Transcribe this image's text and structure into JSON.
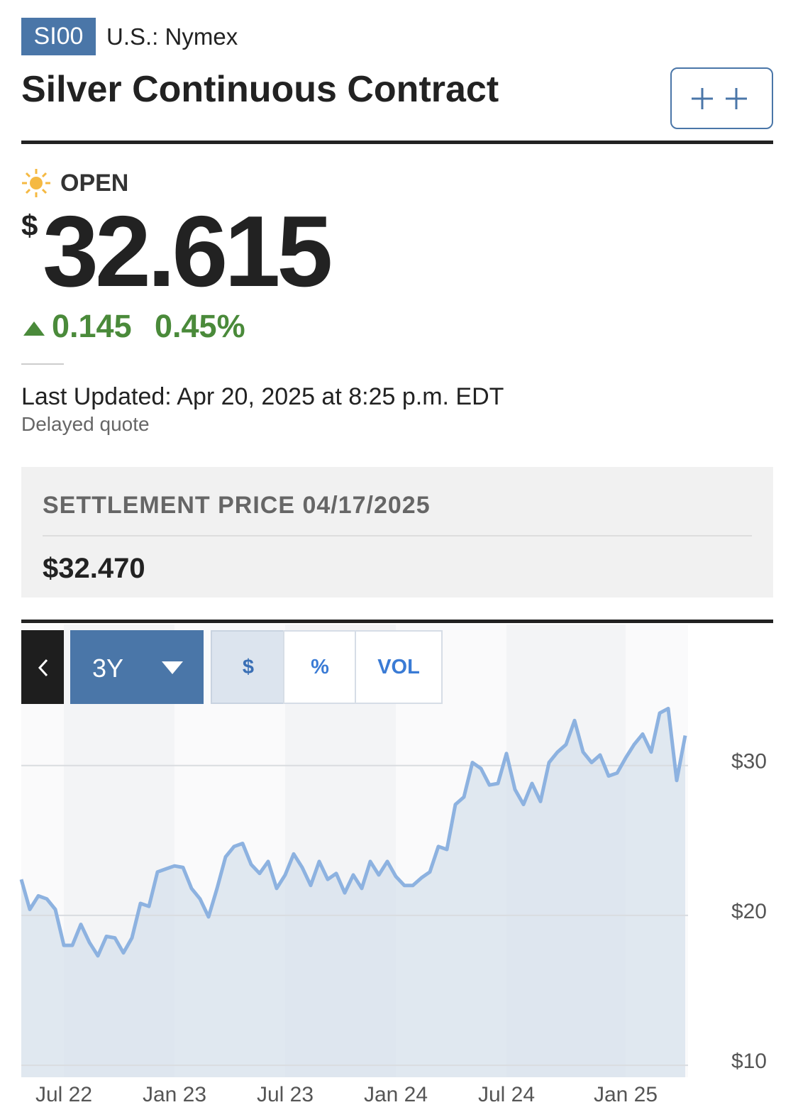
{
  "header": {
    "symbol": "SI00",
    "exchange": "U.S.: Nymex",
    "title": "Silver Continuous Contract"
  },
  "quote": {
    "status": "OPEN",
    "currency": "$",
    "price": "32.615",
    "change": "0.145",
    "change_percent": "0.45%",
    "last_updated": "Last Updated: Apr 20, 2025 at 8:25 p.m. EDT",
    "note": "Delayed quote"
  },
  "settlement": {
    "label": "SETTLEMENT PRICE 04/17/2025",
    "value": "$32.470"
  },
  "controls": {
    "range": "3Y",
    "modes": [
      "$",
      "%",
      "VOL"
    ]
  },
  "chart_data": {
    "type": "line",
    "color": "#8db2e0",
    "grid": true,
    "categories": [
      null,
      null,
      null,
      null,
      null,
      "Jul 22",
      null,
      null,
      null,
      null,
      null,
      null,
      null,
      null,
      null,
      null,
      null,
      null,
      "Jan 23",
      null,
      null,
      null,
      null,
      null,
      null,
      null,
      null,
      null,
      null,
      null,
      null,
      "Jul 23",
      null,
      null,
      null,
      null,
      null,
      null,
      null,
      null,
      null,
      null,
      null,
      null,
      "Jan 24",
      null,
      null,
      null,
      null,
      null,
      null,
      null,
      null,
      null,
      null,
      null,
      null,
      "Jul 24",
      null,
      null,
      null,
      null,
      null,
      null,
      null,
      null,
      null,
      null,
      null,
      null,
      null,
      "Jan 25",
      null,
      null,
      null,
      null,
      null,
      null,
      null
    ],
    "values": [
      22.4,
      20.4,
      21.3,
      21.1,
      20.4,
      18.0,
      18.0,
      19.4,
      18.2,
      17.3,
      18.6,
      18.5,
      17.5,
      18.5,
      20.8,
      20.6,
      22.9,
      23.1,
      23.3,
      23.2,
      21.8,
      21.1,
      19.9,
      21.8,
      23.9,
      24.6,
      24.8,
      23.4,
      22.8,
      23.6,
      21.8,
      22.7,
      24.1,
      23.2,
      22.0,
      23.6,
      22.4,
      22.8,
      21.5,
      22.7,
      21.8,
      23.6,
      22.7,
      23.6,
      22.6,
      22.0,
      22.0,
      22.5,
      22.9,
      24.6,
      24.4,
      27.4,
      27.9,
      30.2,
      29.8,
      28.7,
      28.8,
      30.8,
      28.4,
      27.4,
      28.8,
      27.6,
      30.2,
      30.9,
      31.4,
      33.0,
      30.9,
      30.2,
      30.7,
      29.3,
      29.5,
      30.5,
      31.4,
      32.1,
      30.9,
      33.5,
      33.8,
      29.0,
      32.0
    ],
    "ylim": [
      9.2,
      34.2
    ],
    "yticks": [
      {
        "value": 10,
        "label": "$10"
      },
      {
        "value": 20,
        "label": "$20"
      },
      {
        "value": 30,
        "label": "$30"
      }
    ]
  }
}
